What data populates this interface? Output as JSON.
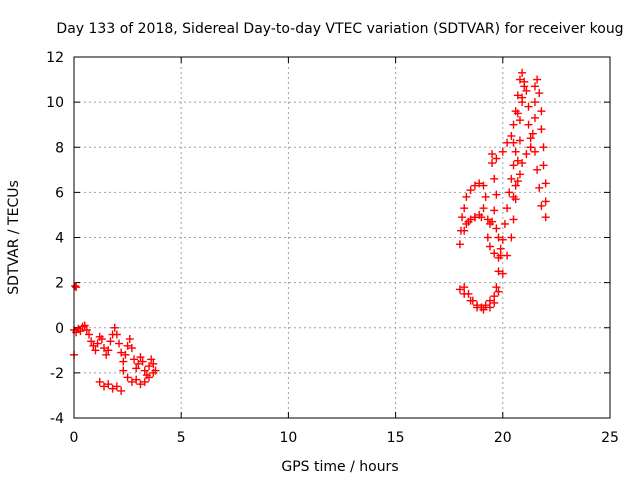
{
  "chart_data": {
    "type": "scatter",
    "title": "Day 133 of 2018, Sidereal Day-to-day VTEC variation (SDTVAR) for receiver koug",
    "xlabel": "GPS time / hours",
    "ylabel": "SDTVAR / TECUs",
    "xlim": [
      0,
      25
    ],
    "ylim": [
      -4,
      12
    ],
    "xticks": [
      "0",
      "5",
      "10",
      "15",
      "20",
      "25"
    ],
    "yticks": [
      "-4",
      "-2",
      "0",
      "2",
      "4",
      "6",
      "8",
      "10",
      "12"
    ],
    "grid": true,
    "marker": "+",
    "color": "#ff0000",
    "series": [
      {
        "name": "SDTVAR",
        "points": [
          [
            0.05,
            1.85
          ],
          [
            0.1,
            1.8
          ],
          [
            0.0,
            -1.2
          ],
          [
            0.0,
            -0.1
          ],
          [
            0.1,
            -0.2
          ],
          [
            0.2,
            -0.05
          ],
          [
            0.3,
            -0.15
          ],
          [
            0.4,
            0.05
          ],
          [
            0.5,
            0.1
          ],
          [
            0.6,
            -0.1
          ],
          [
            0.7,
            -0.3
          ],
          [
            0.8,
            -0.6
          ],
          [
            0.9,
            -0.8
          ],
          [
            1.0,
            -1.0
          ],
          [
            1.1,
            -0.7
          ],
          [
            1.2,
            -0.4
          ],
          [
            1.3,
            -0.5
          ],
          [
            1.4,
            -0.9
          ],
          [
            1.5,
            -1.2
          ],
          [
            1.6,
            -1.0
          ],
          [
            1.7,
            -0.6
          ],
          [
            1.8,
            -0.3
          ],
          [
            1.9,
            0.0
          ],
          [
            2.0,
            -0.3
          ],
          [
            2.1,
            -0.7
          ],
          [
            2.2,
            -1.1
          ],
          [
            2.3,
            -1.5
          ],
          [
            2.4,
            -1.2
          ],
          [
            2.5,
            -0.8
          ],
          [
            2.6,
            -0.5
          ],
          [
            2.7,
            -0.9
          ],
          [
            2.8,
            -1.4
          ],
          [
            2.9,
            -1.8
          ],
          [
            3.0,
            -1.6
          ],
          [
            3.1,
            -1.3
          ],
          [
            3.2,
            -1.5
          ],
          [
            3.3,
            -1.9
          ],
          [
            3.4,
            -2.1
          ],
          [
            3.5,
            -1.7
          ],
          [
            3.6,
            -1.4
          ],
          [
            3.7,
            -1.6
          ],
          [
            3.8,
            -1.9
          ],
          [
            1.2,
            -2.4
          ],
          [
            1.4,
            -2.6
          ],
          [
            1.6,
            -2.5
          ],
          [
            1.8,
            -2.7
          ],
          [
            2.0,
            -2.6
          ],
          [
            2.2,
            -2.8
          ],
          [
            2.3,
            -1.9
          ],
          [
            2.5,
            -2.2
          ],
          [
            2.7,
            -2.4
          ],
          [
            2.9,
            -2.3
          ],
          [
            3.1,
            -2.5
          ],
          [
            3.3,
            -2.4
          ],
          [
            3.5,
            -2.2
          ],
          [
            3.7,
            -2.0
          ],
          [
            18.0,
            3.7
          ],
          [
            18.05,
            4.3
          ],
          [
            18.1,
            4.9
          ],
          [
            18.2,
            5.3
          ],
          [
            18.3,
            5.8
          ],
          [
            18.5,
            6.1
          ],
          [
            18.7,
            6.3
          ],
          [
            18.9,
            6.4
          ],
          [
            19.1,
            6.3
          ],
          [
            19.2,
            5.8
          ],
          [
            19.1,
            5.3
          ],
          [
            18.9,
            5.0
          ],
          [
            18.7,
            4.9
          ],
          [
            18.5,
            4.8
          ],
          [
            18.3,
            4.6
          ],
          [
            18.2,
            4.3
          ],
          [
            18.4,
            4.7
          ],
          [
            18.7,
            4.9
          ],
          [
            19.0,
            4.9
          ],
          [
            19.3,
            4.8
          ],
          [
            19.5,
            4.7
          ],
          [
            19.7,
            4.4
          ],
          [
            19.8,
            4.0
          ],
          [
            19.9,
            3.5
          ],
          [
            19.8,
            3.1
          ],
          [
            19.6,
            3.3
          ],
          [
            19.4,
            3.6
          ],
          [
            19.3,
            4.0
          ],
          [
            19.4,
            4.6
          ],
          [
            19.6,
            5.2
          ],
          [
            19.7,
            5.9
          ],
          [
            19.6,
            6.6
          ],
          [
            19.5,
            7.3
          ],
          [
            19.5,
            7.7
          ],
          [
            19.7,
            7.5
          ],
          [
            20.0,
            7.8
          ],
          [
            20.2,
            8.2
          ],
          [
            20.4,
            8.5
          ],
          [
            20.5,
            8.2
          ],
          [
            20.6,
            7.8
          ],
          [
            20.5,
            7.2
          ],
          [
            20.4,
            6.6
          ],
          [
            20.3,
            6.0
          ],
          [
            20.2,
            5.3
          ],
          [
            20.1,
            4.6
          ],
          [
            20.0,
            3.9
          ],
          [
            19.9,
            3.2
          ],
          [
            19.8,
            2.5
          ],
          [
            19.7,
            1.8
          ],
          [
            19.6,
            1.4
          ],
          [
            19.4,
            1.2
          ],
          [
            19.2,
            1.0
          ],
          [
            19.0,
            0.9
          ],
          [
            18.8,
            1.0
          ],
          [
            18.6,
            1.2
          ],
          [
            18.4,
            1.5
          ],
          [
            18.2,
            1.8
          ],
          [
            18.0,
            1.7
          ],
          [
            18.2,
            1.5
          ],
          [
            18.5,
            1.2
          ],
          [
            18.8,
            0.9
          ],
          [
            19.1,
            0.8
          ],
          [
            19.4,
            0.9
          ],
          [
            19.6,
            1.1
          ],
          [
            19.8,
            1.6
          ],
          [
            20.0,
            2.4
          ],
          [
            20.2,
            3.2
          ],
          [
            20.4,
            4.0
          ],
          [
            20.5,
            4.8
          ],
          [
            20.6,
            5.7
          ],
          [
            20.7,
            6.5
          ],
          [
            20.7,
            7.4
          ],
          [
            20.8,
            8.3
          ],
          [
            20.8,
            9.2
          ],
          [
            20.9,
            10.0
          ],
          [
            21.0,
            10.7
          ],
          [
            20.9,
            11.3
          ],
          [
            20.8,
            11.0
          ],
          [
            20.7,
            10.3
          ],
          [
            20.6,
            9.6
          ],
          [
            20.5,
            9.0
          ],
          [
            20.7,
            9.5
          ],
          [
            20.9,
            10.2
          ],
          [
            21.0,
            10.9
          ],
          [
            21.1,
            10.5
          ],
          [
            21.2,
            9.8
          ],
          [
            21.2,
            9.0
          ],
          [
            21.3,
            8.4
          ],
          [
            21.3,
            8.0
          ],
          [
            21.4,
            8.6
          ],
          [
            21.5,
            9.3
          ],
          [
            21.5,
            10.0
          ],
          [
            21.5,
            10.7
          ],
          [
            21.6,
            11.0
          ],
          [
            21.7,
            10.4
          ],
          [
            21.8,
            9.6
          ],
          [
            21.8,
            8.8
          ],
          [
            21.9,
            8.0
          ],
          [
            21.9,
            7.2
          ],
          [
            22.0,
            6.4
          ],
          [
            22.0,
            5.6
          ],
          [
            22.0,
            4.9
          ],
          [
            21.8,
            5.4
          ],
          [
            21.7,
            6.2
          ],
          [
            21.6,
            7.0
          ],
          [
            21.5,
            7.8
          ],
          [
            21.3,
            8.0
          ],
          [
            21.1,
            7.7
          ],
          [
            20.9,
            7.3
          ],
          [
            20.8,
            6.8
          ],
          [
            20.6,
            6.3
          ],
          [
            20.5,
            5.8
          ]
        ]
      }
    ]
  }
}
